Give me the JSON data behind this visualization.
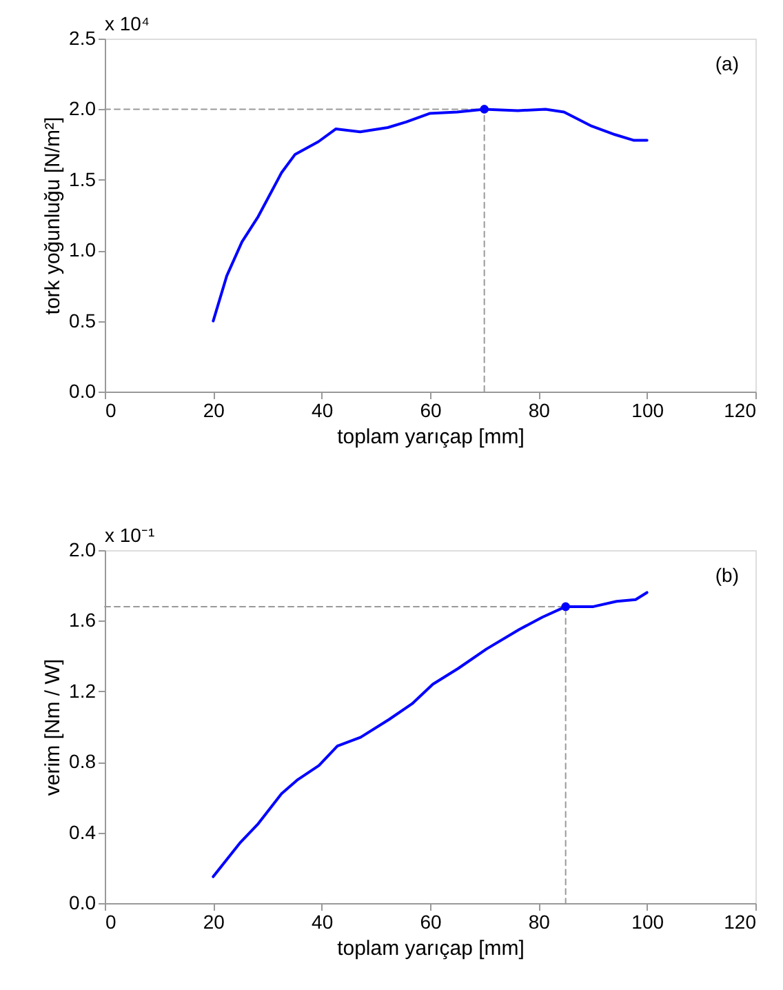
{
  "chart_data": [
    {
      "type": "line",
      "xlabel": "toplam yarıçap [mm]",
      "ylabel": "tork yoğunluğu [N/m²]",
      "annotations": [
        "x 10⁴",
        "(a)"
      ],
      "xlim": [
        0,
        120
      ],
      "xticks": [
        0,
        20,
        40,
        60,
        80,
        100,
        120
      ],
      "ylim": [
        0,
        2.5
      ],
      "yticks": [
        {
          "value": 0,
          "label": "0.0"
        },
        {
          "value": 0.5,
          "label": "0.5"
        },
        {
          "value": 1,
          "label": "1.0"
        },
        {
          "value": 1.5,
          "label": "1.5"
        },
        {
          "value": 2,
          "label": "2.0"
        },
        {
          "value": 2.5,
          "label": "2.5"
        }
      ],
      "grid": false,
      "series": [
        {
          "type": "line",
          "color": "#999999",
          "line_style": "dashed",
          "marker": "none",
          "x": [
            0,
            70,
            70
          ],
          "values": [
            2.0,
            2.0,
            0
          ]
        },
        {
          "color": "#0000ff",
          "line_style": "solid",
          "marker": "none",
          "x": [
            20,
            22.5,
            25.3,
            28.3,
            32.6,
            35.1,
            39.4,
            42.6,
            47.1,
            52.2,
            55.6,
            59.9,
            65,
            70,
            76.2,
            81.3,
            84.7,
            89.8,
            94.1,
            97.5,
            100
          ],
          "values": [
            0.5,
            0.82,
            1.06,
            1.24,
            1.55,
            1.68,
            1.77,
            1.86,
            1.84,
            1.87,
            1.91,
            1.97,
            1.98,
            2.0,
            1.99,
            2.0,
            1.98,
            1.88,
            1.82,
            1.78,
            1.78
          ]
        },
        {
          "type": "scatter",
          "color": "#0000ff",
          "marker": "circle",
          "x": [
            70
          ],
          "values": [
            2.0
          ]
        }
      ]
    },
    {
      "type": "line",
      "xlabel": "toplam yarıçap [mm]",
      "ylabel": "verim [Nm / W]",
      "annotations": [
        "x 10⁻¹",
        "(b)"
      ],
      "xlim": [
        0,
        120
      ],
      "xticks": [
        0,
        20,
        40,
        60,
        80,
        100,
        120
      ],
      "ylim": [
        0,
        2.0
      ],
      "yticks": [
        {
          "value": 0,
          "label": "0.0"
        },
        {
          "value": 0.4,
          "label": "0.4"
        },
        {
          "value": 0.8,
          "label": "0.8"
        },
        {
          "value": 1.2,
          "label": "1.2"
        },
        {
          "value": 1.6,
          "label": "1.6"
        },
        {
          "value": 2.0,
          "label": "2.0"
        }
      ],
      "grid": false,
      "series": [
        {
          "type": "line",
          "color": "#999999",
          "line_style": "dashed",
          "marker": "none",
          "x": [
            0,
            85,
            85
          ],
          "values": [
            1.68,
            1.68,
            0
          ]
        },
        {
          "color": "#0000ff",
          "line_style": "solid",
          "marker": "none",
          "x": [
            20,
            24.9,
            28.3,
            32.6,
            35.6,
            39.5,
            42.9,
            47.2,
            52.4,
            56.7,
            60.5,
            65.2,
            70.4,
            76.4,
            80.7,
            85,
            90.1,
            94.4,
            97.9,
            100
          ],
          "values": [
            0.15,
            0.34,
            0.45,
            0.62,
            0.7,
            0.78,
            0.89,
            0.94,
            1.04,
            1.13,
            1.24,
            1.33,
            1.44,
            1.55,
            1.62,
            1.68,
            1.68,
            1.71,
            1.72,
            1.76
          ]
        },
        {
          "type": "scatter",
          "color": "#0000ff",
          "marker": "circle",
          "x": [
            85
          ],
          "values": [
            1.68
          ]
        }
      ]
    }
  ]
}
